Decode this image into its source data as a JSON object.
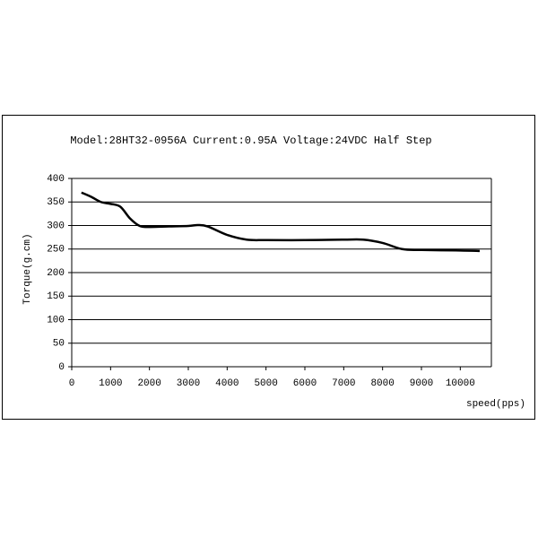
{
  "chart_data": {
    "type": "line",
    "title": "Model:28HT32-0956A Current:0.95A Voltage:24VDC Half Step",
    "x_label": "speed(pps)",
    "y_label": "Torque(g.cm)",
    "x": [
      250,
      500,
      750,
      1000,
      1250,
      1500,
      1750,
      2000,
      2500,
      3000,
      3250,
      3500,
      4000,
      4500,
      5000,
      6000,
      7000,
      7500,
      8000,
      8500,
      9000,
      10000,
      10500
    ],
    "series": [
      {
        "name": "Torque",
        "color": "#000000",
        "values": [
          370,
          361,
          350,
          346,
          340,
          315,
          299,
          297,
          298,
          299,
          301,
          298,
          280,
          270,
          269,
          269,
          270,
          270,
          263,
          250,
          248,
          247,
          246
        ]
      }
    ],
    "xlim": [
      0,
      10800
    ],
    "xticks": [
      0,
      1000,
      2000,
      3000,
      4000,
      5000,
      6000,
      7000,
      8000,
      9000,
      10000
    ],
    "ylim": [
      0,
      400
    ],
    "yticks": [
      0,
      50,
      100,
      150,
      200,
      250,
      300,
      350,
      400
    ],
    "grid": true
  }
}
